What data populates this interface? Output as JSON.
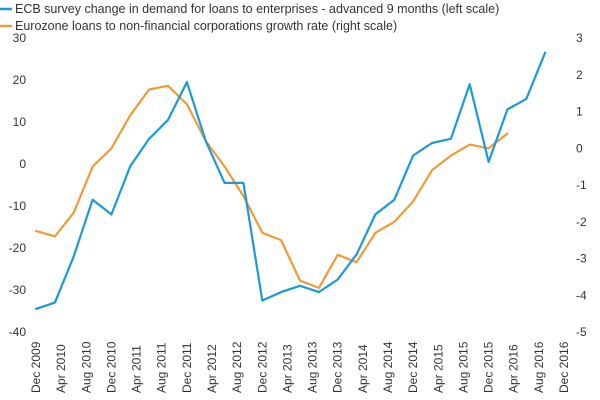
{
  "chart_data": {
    "type": "line",
    "title": "",
    "x": [
      "Dec 2009",
      "Apr 2010",
      "Aug 2010",
      "Dec 2010",
      "Apr 2011",
      "Aug 2011",
      "Dec 2011",
      "Apr 2012",
      "Aug 2012",
      "Dec 2012",
      "Apr 2013",
      "Aug 2013",
      "Dec 2013",
      "Apr 2014",
      "Aug 2014",
      "Dec 2014",
      "Apr 2015",
      "Aug 2015",
      "Dec 2015",
      "Apr 2016",
      "Aug 2016",
      "Dec 2016"
    ],
    "x_tick_labels": [
      "Dec 2009",
      "Apr 2010",
      "Aug 2010",
      "Dec 2010",
      "Apr 2011",
      "Aug 2011",
      "Dec 2011",
      "Apr 2012",
      "Aug 2012",
      "Dec 2012",
      "Apr 2013",
      "Aug 2013",
      "Dec 2013",
      "Apr 2014",
      "Aug 2014",
      "Dec 2014",
      "Apr 2015",
      "Aug 2015",
      "Dec 2015",
      "Apr 2016",
      "Aug 2016",
      "Dec 2016"
    ],
    "left_axis": {
      "ylim": [
        -40,
        30
      ],
      "ticks": [
        -40,
        -30,
        -20,
        -10,
        0,
        10,
        20,
        30
      ],
      "tick_labels": [
        "-40",
        "-30",
        "-20",
        "-10",
        "0",
        "10",
        "20",
        "30"
      ]
    },
    "right_axis": {
      "ylim": [
        -5,
        3
      ],
      "ticks": [
        -5,
        -4,
        -3,
        -2,
        -1,
        0,
        1,
        2,
        3
      ],
      "tick_labels": [
        "-5",
        "-4",
        "-3",
        "-2",
        "-1",
        "0",
        "1",
        "2",
        "3"
      ]
    },
    "grid": false,
    "legend_position": "top",
    "series": [
      {
        "name": "ECB survey change in demand for loans to enterprises - advanced 9 months (left scale)",
        "axis": "left",
        "color": "#1a9bd7",
        "x": [
          "Dec 2009",
          "Mar 2010",
          "Jun 2010",
          "Sep 2010",
          "Dec 2010",
          "Mar 2011",
          "Jun 2011",
          "Sep 2011",
          "Dec 2011",
          "Mar 2012",
          "Jun 2012",
          "Sep 2012",
          "Dec 2012",
          "Mar 2013",
          "Jun 2013",
          "Sep 2013",
          "Dec 2013",
          "Mar 2014",
          "Jun 2014",
          "Sep 2014",
          "Dec 2014",
          "Mar 2015",
          "Jun 2015",
          "Sep 2015",
          "Dec 2015",
          "Mar 2016",
          "Jun 2016",
          "Sep 2016"
        ],
        "values": [
          -34.5,
          -33,
          -22,
          -8.5,
          -12,
          -0.5,
          6,
          10.5,
          19.5,
          5.5,
          -4.5,
          -4.5,
          -32.5,
          -30.5,
          -29,
          -30.5,
          -27.5,
          -21.5,
          -12,
          -8.5,
          2,
          5,
          6,
          19,
          0.5,
          13,
          15.5,
          26.5
        ]
      },
      {
        "name": "Eurozone loans to non-financial corporations growth rate (right scale)",
        "axis": "right",
        "color": "#f09a3a",
        "x": [
          "Dec 2009",
          "Mar 2010",
          "Jun 2010",
          "Sep 2010",
          "Dec 2010",
          "Mar 2011",
          "Jun 2011",
          "Sep 2011",
          "Dec 2011",
          "Mar 2012",
          "Jun 2012",
          "Sep 2012",
          "Dec 2012",
          "Mar 2013",
          "Jun 2013",
          "Sep 2013",
          "Dec 2013",
          "Mar 2014",
          "Jun 2014",
          "Sep 2014",
          "Dec 2014",
          "Mar 2015",
          "Jun 2015",
          "Sep 2015",
          "Dec 2015",
          "Mar 2016"
        ],
        "values": [
          -2.25,
          -2.4,
          -1.75,
          -0.5,
          0,
          0.9,
          1.6,
          1.7,
          1.2,
          0.2,
          -0.5,
          -1.3,
          -2.3,
          -2.5,
          -3.6,
          -3.8,
          -2.9,
          -3.1,
          -2.3,
          -2,
          -1.45,
          -0.6,
          -0.2,
          0.1,
          0,
          0.4
        ]
      }
    ]
  }
}
